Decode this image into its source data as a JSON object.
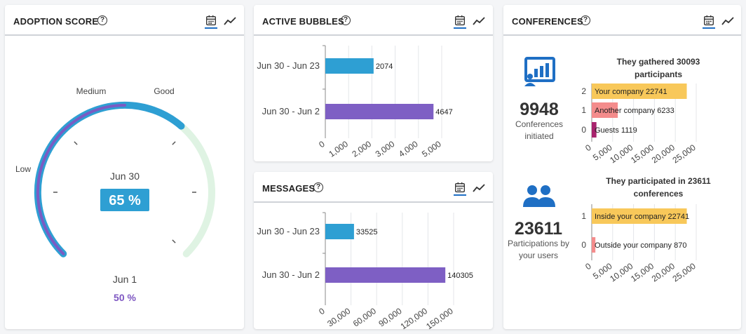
{
  "adoption": {
    "title": "ADOPTION SCORE",
    "levels": [
      "Low",
      "Medium",
      "Good"
    ],
    "current": {
      "label": "Jun 30",
      "value": "65 %",
      "score": 0.65
    },
    "previous": {
      "label": "Jun 1",
      "value": "50 %",
      "score": 0.5
    },
    "colors": {
      "current": "#2e9fd3",
      "previous": "#7e57c2",
      "remainder": "#dff3e3",
      "badge": "#2e9fd3"
    }
  },
  "bubbles": {
    "title": "ACTIVE BUBBLES",
    "chart_data": {
      "type": "bar",
      "orientation": "horizontal",
      "categories": [
        "Jun 30 - Jun 23",
        "Jun 30 - Jun 2"
      ],
      "values": [
        2074,
        4647
      ],
      "data_labels": [
        "2074",
        "4647"
      ],
      "xlim": [
        0,
        5000
      ],
      "xticks": [
        0,
        1000,
        2000,
        3000,
        4000,
        5000
      ],
      "xtick_labels": [
        "0",
        "1,000",
        "2,000",
        "3,000",
        "4,000",
        "5,000"
      ],
      "colors": [
        "#2e9fd3",
        "#7e5fc4"
      ],
      "grid": true
    }
  },
  "messages": {
    "title": "MESSAGES",
    "chart_data": {
      "type": "bar",
      "orientation": "horizontal",
      "categories": [
        "Jun 30 - Jun 23",
        "Jun 30 - Jun 2"
      ],
      "values": [
        33525,
        140305
      ],
      "data_labels": [
        "33525",
        "140305"
      ],
      "xlim": [
        0,
        150000
      ],
      "xticks": [
        0,
        30000,
        60000,
        90000,
        120000,
        150000
      ],
      "xtick_labels": [
        "0",
        "30,000",
        "60,000",
        "90,000",
        "120,000",
        "150,000"
      ],
      "colors": [
        "#2e9fd3",
        "#7e5fc4"
      ],
      "grid": true
    }
  },
  "conferences": {
    "title": "CONFERENCES",
    "initiated": {
      "number": "9948",
      "label_line1": "Conferences",
      "label_line2": "initiated",
      "icon": "presentation-chart-icon"
    },
    "participations": {
      "number": "23611",
      "label_line1": "Participations by",
      "label_line2": "your users",
      "icon": "users-icon"
    },
    "accent": "#1f6fc4",
    "gathered_chart": {
      "type": "bar",
      "orientation": "horizontal",
      "title_line1": "They gathered 30093",
      "title_line2": "participants",
      "categories": [
        "2",
        "1",
        "0"
      ],
      "values": [
        22741,
        6233,
        1119
      ],
      "data_labels": [
        "Your company 22741",
        "Another company 6233",
        "Guests 1119"
      ],
      "colors": [
        "#f8c85a",
        "#f48c8c",
        "#a8236d"
      ],
      "xlim": [
        0,
        25000
      ],
      "xticks": [
        0,
        5000,
        10000,
        15000,
        20000,
        25000
      ],
      "xtick_labels": [
        "0",
        "5,000",
        "10,000",
        "15,000",
        "20,000",
        "25,000"
      ],
      "grid": true
    },
    "participated_chart": {
      "type": "bar",
      "orientation": "horizontal",
      "title_line1": "They participated in 23611",
      "title_line2": "conferences",
      "categories": [
        "1",
        "0"
      ],
      "values": [
        22741,
        870
      ],
      "data_labels": [
        "Inside your company 22741",
        "Outside your company 870"
      ],
      "colors": [
        "#f8c85a",
        "#f48c8c"
      ],
      "xlim": [
        0,
        25000
      ],
      "xticks": [
        0,
        5000,
        10000,
        15000,
        20000,
        25000
      ],
      "xtick_labels": [
        "0",
        "5,000",
        "10,000",
        "15,000",
        "20,000",
        "25,000"
      ],
      "grid": true
    }
  },
  "controls": {
    "calendar_icon": "calendar-icon",
    "trend_icon": "trend-line-icon"
  }
}
